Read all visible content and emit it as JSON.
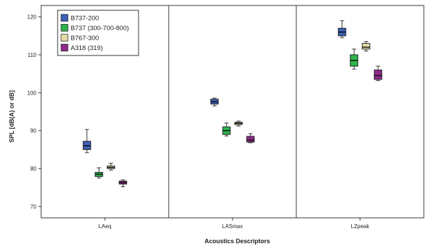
{
  "chart_data": {
    "type": "boxplot",
    "xlabel": "Acoustics Descriptors",
    "ylabel": "SPL  [dB(A) or dB]",
    "ylim": [
      67,
      123
    ],
    "yticks": [
      70,
      80,
      90,
      100,
      110,
      120
    ],
    "categories": [
      "LAeq",
      "LASmax",
      "LZpeak"
    ],
    "legend_position": "top-left",
    "grid": false,
    "series": [
      {
        "name": "B737-200",
        "color": "#3f5fb8",
        "boxes": [
          {
            "min": 84.2,
            "q1": 85.0,
            "median": 86.0,
            "q3": 87.2,
            "max": 90.3
          },
          {
            "min": 96.5,
            "q1": 97.0,
            "median": 97.6,
            "q3": 98.3,
            "max": 98.6
          },
          {
            "min": 114.5,
            "q1": 115.0,
            "median": 116.0,
            "q3": 117.0,
            "max": 119.0
          }
        ]
      },
      {
        "name": "B737 (300-700-800)",
        "color": "#2db34a",
        "boxes": [
          {
            "min": 77.5,
            "q1": 77.9,
            "median": 78.5,
            "q3": 79.0,
            "max": 80.2
          },
          {
            "min": 88.6,
            "q1": 89.0,
            "median": 90.0,
            "q3": 91.0,
            "max": 92.0
          },
          {
            "min": 106.2,
            "q1": 107.0,
            "median": 108.5,
            "q3": 110.0,
            "max": 111.5
          }
        ]
      },
      {
        "name": "B767-300",
        "color": "#e6dca8",
        "boxes": [
          {
            "min": 79.6,
            "q1": 80.0,
            "median": 80.3,
            "q3": 80.7,
            "max": 81.4
          },
          {
            "min": 91.2,
            "q1": 91.6,
            "median": 91.9,
            "q3": 92.2,
            "max": 92.5
          },
          {
            "min": 111.0,
            "q1": 111.5,
            "median": 112.0,
            "q3": 113.0,
            "max": 113.5
          }
        ]
      },
      {
        "name": "A318 (319)",
        "color": "#8e2b8a",
        "boxes": [
          {
            "min": 75.2,
            "q1": 75.9,
            "median": 76.3,
            "q3": 76.7,
            "max": 77.0
          },
          {
            "min": 86.8,
            "q1": 87.0,
            "median": 87.5,
            "q3": 88.5,
            "max": 89.2
          },
          {
            "min": 103.2,
            "q1": 103.5,
            "median": 104.5,
            "q3": 106.0,
            "max": 107.0
          }
        ]
      }
    ]
  }
}
